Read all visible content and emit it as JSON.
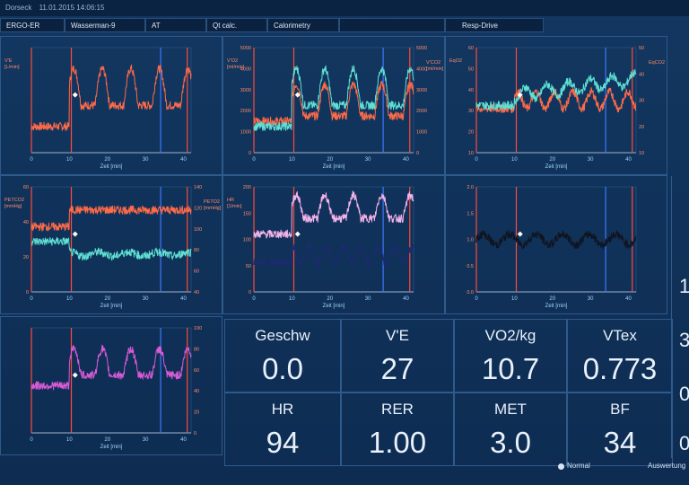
{
  "window": {
    "title_prefix": "Dorseck",
    "date": "11.01.2015 14:06:15"
  },
  "tabs": [
    {
      "label": "ERGO-ER"
    },
    {
      "label": "Wasserman-9"
    },
    {
      "label": "AT"
    },
    {
      "label": "Qt calc."
    },
    {
      "label": "Calorimetry"
    },
    {
      "label": ""
    },
    {
      "label": "Resp-Drive"
    }
  ],
  "x_axis_label": "Zeit [min]",
  "x_ticks": [
    "0",
    "10",
    "20",
    "30",
    "40"
  ],
  "colors": {
    "red": "#ff6a48",
    "cyan": "#5fe0d3",
    "magenta": "#d95ad6",
    "pink": "#f3b2ea",
    "navy": "#1b2b6e",
    "blue_marker": "#3e78ff",
    "dark": "#0f1420"
  },
  "charts": [
    {
      "id": "ve",
      "left_label": "V'E\n[L/min]",
      "left_ticks": [],
      "right_label": "",
      "right_ticks": [],
      "series": [
        "red"
      ]
    },
    {
      "id": "vo2",
      "left_label": "V'O2\n[ml/min]",
      "left_ticks": [
        "5000",
        "4000",
        "3000",
        "2000",
        "1000",
        "0"
      ],
      "right_label": "V'CO2\n[ml/min]",
      "right_ticks": [
        "5000",
        "4000",
        "3000",
        "2000",
        "1000",
        "0"
      ],
      "series": [
        "red",
        "cyan"
      ]
    },
    {
      "id": "eq",
      "left_label": "EqO2",
      "left_ticks": [
        "60",
        "50",
        "40",
        "30",
        "20",
        "10"
      ],
      "right_label": "EqCO2",
      "right_ticks": [
        "50",
        "40",
        "30",
        "20",
        "10"
      ],
      "series": [
        "red",
        "cyan"
      ]
    },
    {
      "id": "petco2",
      "left_label": "PETCO2\n[mmHg]",
      "left_ticks": [
        "60",
        "40",
        "20",
        "0"
      ],
      "right_label": "PETO2\n[mmHg]",
      "right_ticks": [
        "140",
        "120",
        "100",
        "80",
        "60",
        "40"
      ],
      "series": [
        "red",
        "cyan"
      ]
    },
    {
      "id": "hr",
      "left_label": "HR\n[1/min]",
      "left_ticks": [
        "200",
        "150",
        "100",
        "50",
        "0"
      ],
      "right_label": "",
      "right_ticks": [],
      "series": [
        "pink",
        "navy"
      ]
    },
    {
      "id": "rer",
      "left_label": "",
      "left_ticks": [
        "2.0",
        "1.5",
        "1.0",
        "0.5",
        "0.0"
      ],
      "right_label": "",
      "right_ticks": [],
      "series": [
        "dark"
      ]
    },
    {
      "id": "vt",
      "left_label": "",
      "left_ticks": [],
      "right_label": "",
      "right_ticks": [
        "100",
        "80",
        "60",
        "40",
        "20",
        "0"
      ],
      "series": [
        "magenta"
      ]
    }
  ],
  "tiles": [
    {
      "label": "Geschw",
      "value": "0.0"
    },
    {
      "label": "V'E",
      "value": "27"
    },
    {
      "label": "VO2/kg",
      "value": "10.7"
    },
    {
      "label": "VTex",
      "value": "0.773"
    },
    {
      "label": "HR",
      "value": "94"
    },
    {
      "label": "RER",
      "value": "1.00"
    },
    {
      "label": "MET",
      "value": "3.0"
    },
    {
      "label": "BF",
      "value": "34"
    }
  ],
  "edge_values": [
    "1",
    "3",
    "0",
    "0"
  ],
  "status": {
    "left": "Normal",
    "right": "Auswertung"
  }
}
